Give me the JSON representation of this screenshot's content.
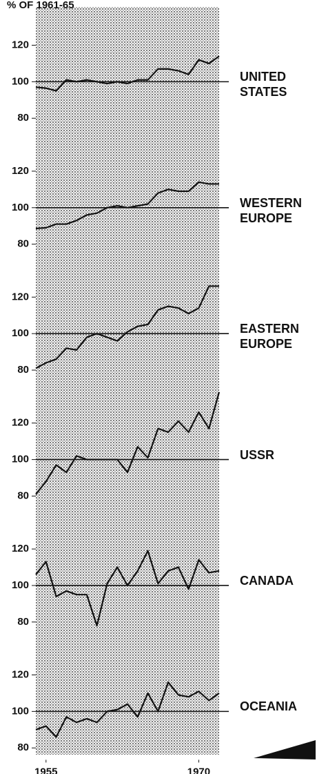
{
  "ylabel": "% OF 1961-65",
  "chart_data": [
    {
      "type": "line",
      "title": "UNITED STATES",
      "x": [
        1954,
        1955,
        1956,
        1957,
        1958,
        1959,
        1960,
        1961,
        1962,
        1963,
        1964,
        1965,
        1966,
        1967,
        1968,
        1969,
        1970,
        1971,
        1972
      ],
      "series": [
        {
          "values": [
            97,
            96.5,
            95,
            101,
            100,
            101,
            100,
            99,
            100,
            99,
            101,
            101,
            107,
            107,
            106,
            104,
            112,
            110,
            114
          ],
          "color": "#111111"
        }
      ],
      "reference_line": 100,
      "xlim": [
        1954,
        1972
      ],
      "ylim": [
        72,
        141
      ],
      "yticks": [
        80,
        100,
        120
      ]
    },
    {
      "type": "line",
      "title": "WESTERN EUROPE",
      "x": [
        1954,
        1955,
        1956,
        1957,
        1958,
        1959,
        1960,
        1961,
        1962,
        1963,
        1964,
        1965,
        1966,
        1967,
        1968,
        1969,
        1970,
        1971,
        1972
      ],
      "series": [
        {
          "values": [
            88.6,
            89,
            91,
            91,
            93,
            96,
            97,
            100,
            101,
            100,
            101,
            102,
            108,
            110,
            109,
            109,
            114,
            113,
            113
          ],
          "color": "#111111"
        }
      ],
      "reference_line": 100,
      "xlim": [
        1954,
        1972
      ],
      "ylim": [
        72,
        141
      ],
      "yticks": [
        80,
        100,
        120
      ]
    },
    {
      "type": "line",
      "title": "EASTERN EUROPE",
      "x": [
        1954,
        1955,
        1956,
        1957,
        1958,
        1959,
        1960,
        1961,
        1962,
        1963,
        1964,
        1965,
        1966,
        1967,
        1968,
        1969,
        1970,
        1971,
        1972
      ],
      "series": [
        {
          "values": [
            81,
            84,
            86,
            92,
            91,
            98,
            100,
            98,
            96,
            101,
            104,
            105,
            113,
            115,
            114,
            111,
            114,
            126,
            126
          ],
          "color": "#111111"
        }
      ],
      "reference_line": 100,
      "xlim": [
        1954,
        1972
      ],
      "ylim": [
        72,
        141
      ],
      "yticks": [
        80,
        100,
        120
      ]
    },
    {
      "type": "line",
      "title": "USSR",
      "x": [
        1954,
        1955,
        1956,
        1957,
        1958,
        1959,
        1960,
        1961,
        1962,
        1963,
        1964,
        1965,
        1966,
        1967,
        1968,
        1969,
        1970,
        1971,
        1972
      ],
      "series": [
        {
          "values": [
            81,
            88,
            97,
            93,
            102,
            100,
            100,
            100,
            100,
            93,
            107,
            101,
            117,
            115,
            121,
            115,
            126,
            117,
            137
          ],
          "color": "#111111"
        }
      ],
      "reference_line": 100,
      "xlim": [
        1954,
        1972
      ],
      "ylim": [
        72,
        141
      ],
      "yticks": [
        80,
        100,
        120
      ]
    },
    {
      "type": "line",
      "title": "CANADA",
      "x": [
        1954,
        1955,
        1956,
        1957,
        1958,
        1959,
        1960,
        1961,
        1962,
        1963,
        1964,
        1965,
        1966,
        1967,
        1968,
        1969,
        1970,
        1971,
        1972
      ],
      "series": [
        {
          "values": [
            106,
            113,
            94,
            97,
            95,
            95,
            78,
            101,
            110,
            100,
            108,
            119,
            101,
            108,
            110,
            98,
            114,
            107,
            108
          ],
          "color": "#111111"
        }
      ],
      "reference_line": 100,
      "xlim": [
        1954,
        1972
      ],
      "ylim": [
        72,
        141
      ],
      "yticks": [
        80,
        100,
        120
      ]
    },
    {
      "type": "line",
      "title": "OCEANIA",
      "x": [
        1954,
        1955,
        1956,
        1957,
        1958,
        1959,
        1960,
        1961,
        1962,
        1963,
        1964,
        1965,
        1966,
        1967,
        1968,
        1969,
        1970,
        1971,
        1972
      ],
      "series": [
        {
          "values": [
            90,
            92,
            86,
            97,
            94,
            96,
            94,
            100,
            101,
            104,
            97,
            110,
            100,
            116,
            109,
            108,
            111,
            106,
            110
          ],
          "color": "#111111"
        }
      ],
      "reference_line": 100,
      "xlim": [
        1954,
        1972
      ],
      "ylim": [
        72,
        141
      ],
      "yticks": [
        80,
        100,
        120
      ],
      "xticks": [
        1955,
        1970
      ]
    }
  ]
}
